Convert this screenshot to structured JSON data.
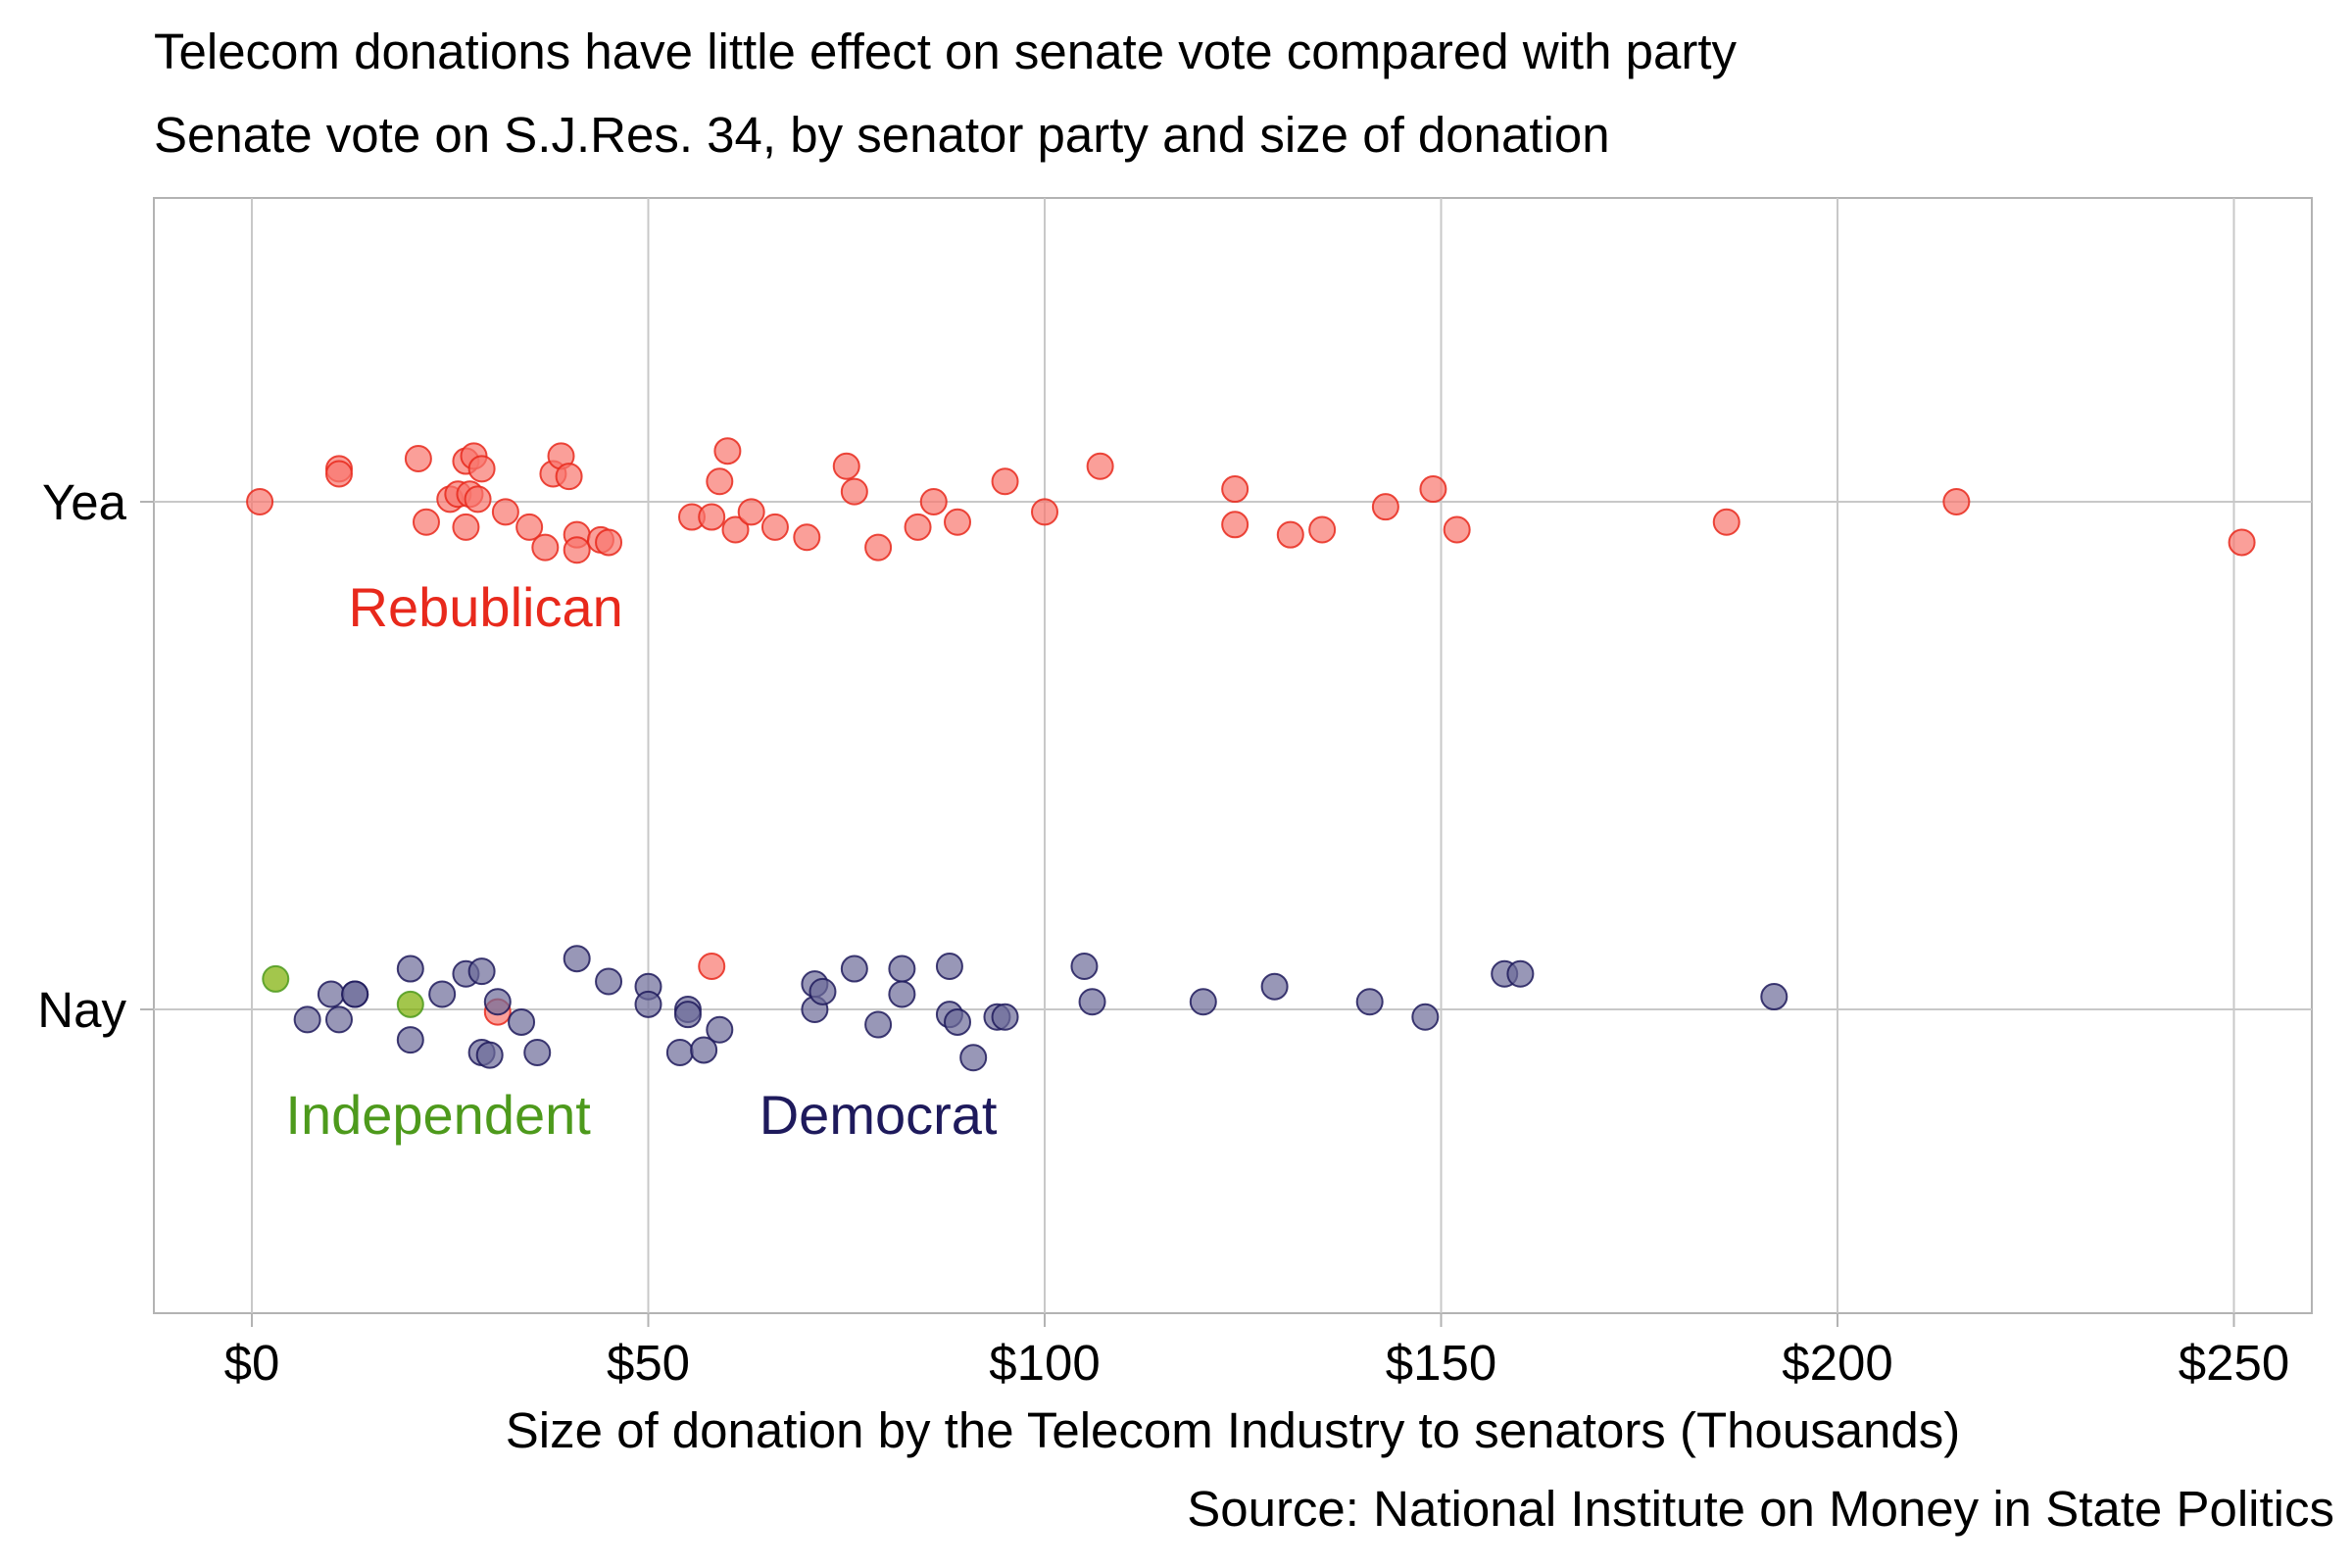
{
  "chart_data": {
    "type": "scatter",
    "title": "Telecom donations have little effect on senate vote compared with party",
    "subtitle": "Senate vote on S.J.Res. 34, by senator party and size of donation",
    "caption": "Source: National Institute on Money in State Politics",
    "xlabel": "Size of donation by the Telecom Industry to senators (Thousands)",
    "ylabel": "",
    "xlim": [
      -12,
      262
    ],
    "x_ticks": [
      0,
      50,
      100,
      150,
      200,
      250
    ],
    "x_tick_labels": [
      "$0",
      "$50",
      "$100",
      "$150",
      "$200",
      "$250"
    ],
    "y_categories": [
      "Nay",
      "Yea"
    ],
    "grid": true,
    "legend": "none",
    "annotations": [
      {
        "text": "Rebublican",
        "color": "#e8291c",
        "x": 29.5,
        "y": "Yea",
        "dy": -0.21
      },
      {
        "text": "Independent",
        "color": "#4d9a1c",
        "x": 23.5,
        "y": "Nay",
        "dy": -0.21
      },
      {
        "text": "Democrat",
        "color": "#1e1a5c",
        "x": 79,
        "y": "Nay",
        "dy": -0.21
      }
    ],
    "series": [
      {
        "color": "#f8766d",
        "stroke": "#e8291c",
        "points": [
          {
            "x": 1,
            "y": "Yea",
            "jitter": 0.0
          },
          {
            "x": 11,
            "y": "Yea",
            "jitter": 0.065
          },
          {
            "x": 11,
            "y": "Yea",
            "jitter": 0.055
          },
          {
            "x": 21,
            "y": "Yea",
            "jitter": 0.085
          },
          {
            "x": 22,
            "y": "Yea",
            "jitter": -0.04
          },
          {
            "x": 25,
            "y": "Yea",
            "jitter": 0.005
          },
          {
            "x": 26,
            "y": "Yea",
            "jitter": 0.015
          },
          {
            "x": 27,
            "y": "Yea",
            "jitter": 0.08
          },
          {
            "x": 27,
            "y": "Yea",
            "jitter": -0.05
          },
          {
            "x": 27.5,
            "y": "Yea",
            "jitter": 0.015
          },
          {
            "x": 28,
            "y": "Yea",
            "jitter": 0.09
          },
          {
            "x": 28.5,
            "y": "Yea",
            "jitter": 0.005
          },
          {
            "x": 29,
            "y": "Yea",
            "jitter": 0.065
          },
          {
            "x": 32,
            "y": "Yea",
            "jitter": -0.02
          },
          {
            "x": 35,
            "y": "Yea",
            "jitter": -0.05
          },
          {
            "x": 37,
            "y": "Yea",
            "jitter": -0.09
          },
          {
            "x": 38,
            "y": "Yea",
            "jitter": 0.055
          },
          {
            "x": 39,
            "y": "Yea",
            "jitter": 0.09
          },
          {
            "x": 40,
            "y": "Yea",
            "jitter": 0.05
          },
          {
            "x": 41,
            "y": "Yea",
            "jitter": -0.065
          },
          {
            "x": 41,
            "y": "Yea",
            "jitter": -0.095
          },
          {
            "x": 44,
            "y": "Yea",
            "jitter": -0.075
          },
          {
            "x": 45,
            "y": "Yea",
            "jitter": -0.08
          },
          {
            "x": 55.5,
            "y": "Yea",
            "jitter": -0.03
          },
          {
            "x": 58,
            "y": "Yea",
            "jitter": -0.03
          },
          {
            "x": 59,
            "y": "Yea",
            "jitter": 0.04
          },
          {
            "x": 60,
            "y": "Yea",
            "jitter": 0.1
          },
          {
            "x": 61,
            "y": "Yea",
            "jitter": -0.055
          },
          {
            "x": 63,
            "y": "Yea",
            "jitter": -0.02
          },
          {
            "x": 66,
            "y": "Yea",
            "jitter": -0.05
          },
          {
            "x": 70,
            "y": "Yea",
            "jitter": -0.07
          },
          {
            "x": 75,
            "y": "Yea",
            "jitter": 0.07
          },
          {
            "x": 76,
            "y": "Yea",
            "jitter": 0.02
          },
          {
            "x": 79,
            "y": "Yea",
            "jitter": -0.09
          },
          {
            "x": 84,
            "y": "Yea",
            "jitter": -0.05
          },
          {
            "x": 86,
            "y": "Yea",
            "jitter": 0.0
          },
          {
            "x": 89,
            "y": "Yea",
            "jitter": -0.04
          },
          {
            "x": 95,
            "y": "Yea",
            "jitter": 0.04
          },
          {
            "x": 100,
            "y": "Yea",
            "jitter": -0.02
          },
          {
            "x": 107,
            "y": "Yea",
            "jitter": 0.07
          },
          {
            "x": 124,
            "y": "Yea",
            "jitter": 0.025
          },
          {
            "x": 124,
            "y": "Yea",
            "jitter": -0.045
          },
          {
            "x": 131,
            "y": "Yea",
            "jitter": -0.065
          },
          {
            "x": 135,
            "y": "Yea",
            "jitter": -0.055
          },
          {
            "x": 143,
            "y": "Yea",
            "jitter": -0.01
          },
          {
            "x": 149,
            "y": "Yea",
            "jitter": 0.025
          },
          {
            "x": 152,
            "y": "Yea",
            "jitter": -0.055
          },
          {
            "x": 186,
            "y": "Yea",
            "jitter": -0.04
          },
          {
            "x": 215,
            "y": "Yea",
            "jitter": 0.0
          },
          {
            "x": 251,
            "y": "Yea",
            "jitter": -0.08
          },
          {
            "x": 58,
            "y": "Nay",
            "jitter": 0.085
          },
          {
            "x": 31,
            "y": "Nay",
            "jitter": -0.005
          }
        ]
      },
      {
        "color": "#6c6b99",
        "stroke": "#1e1a5c",
        "points": [
          {
            "x": 7,
            "y": "Nay",
            "jitter": -0.02
          },
          {
            "x": 10,
            "y": "Nay",
            "jitter": 0.03
          },
          {
            "x": 11,
            "y": "Nay",
            "jitter": -0.02
          },
          {
            "x": 13,
            "y": "Nay",
            "jitter": 0.03
          },
          {
            "x": 13,
            "y": "Nay",
            "jitter": 0.03
          },
          {
            "x": 20,
            "y": "Nay",
            "jitter": 0.08
          },
          {
            "x": 20,
            "y": "Nay",
            "jitter": -0.06
          },
          {
            "x": 24,
            "y": "Nay",
            "jitter": 0.03
          },
          {
            "x": 27,
            "y": "Nay",
            "jitter": 0.07
          },
          {
            "x": 29,
            "y": "Nay",
            "jitter": 0.075
          },
          {
            "x": 29,
            "y": "Nay",
            "jitter": -0.085
          },
          {
            "x": 30,
            "y": "Nay",
            "jitter": -0.09
          },
          {
            "x": 31,
            "y": "Nay",
            "jitter": 0.015
          },
          {
            "x": 34,
            "y": "Nay",
            "jitter": -0.025
          },
          {
            "x": 36,
            "y": "Nay",
            "jitter": -0.085
          },
          {
            "x": 41,
            "y": "Nay",
            "jitter": 0.1
          },
          {
            "x": 45,
            "y": "Nay",
            "jitter": 0.055
          },
          {
            "x": 50,
            "y": "Nay",
            "jitter": 0.045
          },
          {
            "x": 50,
            "y": "Nay",
            "jitter": 0.01
          },
          {
            "x": 54,
            "y": "Nay",
            "jitter": -0.085
          },
          {
            "x": 55,
            "y": "Nay",
            "jitter": 0.0
          },
          {
            "x": 55,
            "y": "Nay",
            "jitter": -0.01
          },
          {
            "x": 57,
            "y": "Nay",
            "jitter": -0.08
          },
          {
            "x": 59,
            "y": "Nay",
            "jitter": -0.04
          },
          {
            "x": 71,
            "y": "Nay",
            "jitter": 0.05
          },
          {
            "x": 71,
            "y": "Nay",
            "jitter": 0.0
          },
          {
            "x": 72,
            "y": "Nay",
            "jitter": 0.035
          },
          {
            "x": 76,
            "y": "Nay",
            "jitter": 0.08
          },
          {
            "x": 79,
            "y": "Nay",
            "jitter": -0.03
          },
          {
            "x": 82,
            "y": "Nay",
            "jitter": 0.08
          },
          {
            "x": 82,
            "y": "Nay",
            "jitter": 0.03
          },
          {
            "x": 88,
            "y": "Nay",
            "jitter": 0.085
          },
          {
            "x": 88,
            "y": "Nay",
            "jitter": -0.01
          },
          {
            "x": 89,
            "y": "Nay",
            "jitter": -0.025
          },
          {
            "x": 91,
            "y": "Nay",
            "jitter": -0.095
          },
          {
            "x": 94,
            "y": "Nay",
            "jitter": -0.015
          },
          {
            "x": 95,
            "y": "Nay",
            "jitter": -0.015
          },
          {
            "x": 105,
            "y": "Nay",
            "jitter": 0.085
          },
          {
            "x": 106,
            "y": "Nay",
            "jitter": 0.015
          },
          {
            "x": 120,
            "y": "Nay",
            "jitter": 0.015
          },
          {
            "x": 129,
            "y": "Nay",
            "jitter": 0.045
          },
          {
            "x": 141,
            "y": "Nay",
            "jitter": 0.015
          },
          {
            "x": 148,
            "y": "Nay",
            "jitter": -0.015
          },
          {
            "x": 158,
            "y": "Nay",
            "jitter": 0.07
          },
          {
            "x": 160,
            "y": "Nay",
            "jitter": 0.07
          },
          {
            "x": 192,
            "y": "Nay",
            "jitter": 0.025
          }
        ]
      },
      {
        "color": "#7cae00",
        "stroke": "#4d9a1c",
        "points": [
          {
            "x": 3,
            "y": "Nay",
            "jitter": 0.06
          },
          {
            "x": 20,
            "y": "Nay",
            "jitter": 0.01
          }
        ]
      }
    ]
  }
}
